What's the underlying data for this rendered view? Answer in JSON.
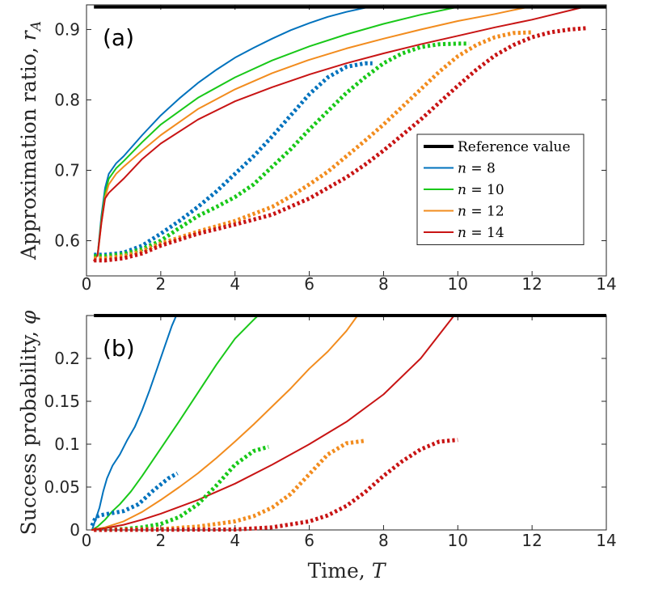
{
  "chart_data": [
    {
      "type": "line",
      "panel_label": "(a)",
      "ylabel": "Approximation ratio, r_A",
      "ylabel_text": "Approximation ratio, ",
      "ylabel_symbol": "r",
      "ylabel_sub": "A",
      "xlabel": "",
      "xlim": [
        0,
        14
      ],
      "ylim": [
        0.55,
        0.935
      ],
      "xticks": [
        "0",
        "2",
        "4",
        "6",
        "8",
        "10",
        "12",
        "14"
      ],
      "xtick_values": [
        0,
        2,
        4,
        6,
        8,
        10,
        12,
        14
      ],
      "yticks": [
        "0.6",
        "0.7",
        "0.8",
        "0.9"
      ],
      "ytick_values": [
        0.6,
        0.7,
        0.8,
        0.9
      ],
      "reference": {
        "name": "Reference value",
        "y": 0.932,
        "x": [
          0.2,
          14
        ],
        "color": "#000000"
      },
      "legend": {
        "position": "center-right",
        "entries": [
          {
            "label": "Reference value",
            "color": "#000000"
          },
          {
            "label_var": "n",
            "label_eq": " = 8",
            "label": "n = 8",
            "color": "#0072BD"
          },
          {
            "label_var": "n",
            "label_eq": " = 10",
            "label": "n = 10",
            "color": "#19C819"
          },
          {
            "label_var": "n",
            "label_eq": " = 12",
            "label": "n = 12",
            "color": "#F28C1E"
          },
          {
            "label_var": "n",
            "label_eq": " = 14",
            "label": "n = 14",
            "color": "#C81414"
          }
        ]
      },
      "series": [
        {
          "name": "n = 8",
          "style": "solid",
          "color": "#0072BD",
          "x": [
            0.3,
            0.4,
            0.5,
            0.6,
            0.8,
            1,
            1.5,
            2,
            2.5,
            3,
            3.5,
            4,
            4.5,
            5,
            5.5,
            6,
            6.5,
            7,
            7.6
          ],
          "y": [
            0.58,
            0.635,
            0.675,
            0.695,
            0.71,
            0.72,
            0.75,
            0.778,
            0.802,
            0.824,
            0.843,
            0.86,
            0.874,
            0.887,
            0.899,
            0.909,
            0.918,
            0.925,
            0.932
          ]
        },
        {
          "name": "n = 10",
          "style": "solid",
          "color": "#19C819",
          "x": [
            0.3,
            0.4,
            0.5,
            0.6,
            0.8,
            1,
            1.5,
            2,
            3,
            4,
            5,
            6,
            7,
            8,
            9,
            10
          ],
          "y": [
            0.58,
            0.63,
            0.668,
            0.688,
            0.703,
            0.713,
            0.74,
            0.765,
            0.803,
            0.832,
            0.856,
            0.876,
            0.893,
            0.908,
            0.921,
            0.932
          ]
        },
        {
          "name": "n = 12",
          "style": "solid",
          "color": "#F28C1E",
          "x": [
            0.3,
            0.4,
            0.5,
            0.6,
            0.8,
            1,
            1.5,
            2,
            3,
            4,
            5,
            6,
            7,
            8,
            9,
            10,
            11,
            11.9
          ],
          "y": [
            0.578,
            0.625,
            0.662,
            0.68,
            0.695,
            0.705,
            0.728,
            0.75,
            0.787,
            0.815,
            0.838,
            0.857,
            0.873,
            0.887,
            0.9,
            0.912,
            0.922,
            0.932
          ]
        },
        {
          "name": "n = 14",
          "style": "solid",
          "color": "#C81414",
          "x": [
            0.2,
            0.3,
            0.4,
            0.5,
            0.6,
            0.8,
            1,
            1.5,
            2,
            3,
            4,
            5,
            6,
            7,
            8,
            9,
            10,
            11,
            12,
            13.4
          ],
          "y": [
            0.572,
            0.58,
            0.625,
            0.66,
            0.668,
            0.678,
            0.688,
            0.716,
            0.738,
            0.772,
            0.798,
            0.818,
            0.836,
            0.852,
            0.866,
            0.879,
            0.891,
            0.903,
            0.914,
            0.932
          ]
        },
        {
          "name": "n = 8 (dotted)",
          "style": "dotted",
          "color": "#0072BD",
          "x": [
            0.2,
            0.5,
            1,
            1.5,
            2,
            2.5,
            3,
            3.5,
            4,
            4.5,
            5,
            5.5,
            6,
            6.5,
            7,
            7.5,
            7.7
          ],
          "y": [
            0.58,
            0.58,
            0.583,
            0.593,
            0.61,
            0.628,
            0.648,
            0.67,
            0.695,
            0.72,
            0.748,
            0.778,
            0.808,
            0.832,
            0.847,
            0.852,
            0.852
          ]
        },
        {
          "name": "n = 10 (dotted)",
          "style": "dotted",
          "color": "#19C819",
          "x": [
            0.2,
            0.5,
            1,
            1.5,
            2,
            2.5,
            3,
            3.5,
            4,
            4.5,
            5,
            5.5,
            6,
            6.5,
            7,
            7.5,
            8,
            8.5,
            9,
            9.5,
            10,
            10.3
          ],
          "y": [
            0.578,
            0.578,
            0.581,
            0.588,
            0.6,
            0.618,
            0.635,
            0.648,
            0.662,
            0.68,
            0.705,
            0.73,
            0.758,
            0.784,
            0.81,
            0.832,
            0.852,
            0.866,
            0.875,
            0.879,
            0.88,
            0.88
          ]
        },
        {
          "name": "n = 12 (dotted)",
          "style": "dotted",
          "color": "#F28C1E",
          "x": [
            0.2,
            0.5,
            1,
            1.5,
            2,
            3,
            4,
            5,
            5.5,
            6,
            6.5,
            7,
            7.5,
            8,
            8.5,
            9,
            9.5,
            10,
            10.5,
            11,
            11.5,
            12
          ],
          "y": [
            0.575,
            0.575,
            0.578,
            0.585,
            0.596,
            0.613,
            0.628,
            0.648,
            0.663,
            0.68,
            0.698,
            0.72,
            0.742,
            0.765,
            0.79,
            0.815,
            0.84,
            0.862,
            0.878,
            0.889,
            0.895,
            0.896
          ]
        },
        {
          "name": "n = 14 (dotted)",
          "style": "dotted",
          "color": "#C81414",
          "x": [
            0.2,
            0.5,
            1,
            1.5,
            2,
            3,
            4,
            5,
            6,
            7,
            7.5,
            8,
            8.5,
            9,
            9.5,
            10,
            10.5,
            11,
            11.5,
            12,
            12.5,
            13,
            13.5
          ],
          "y": [
            0.572,
            0.572,
            0.575,
            0.582,
            0.593,
            0.61,
            0.623,
            0.637,
            0.66,
            0.69,
            0.708,
            0.728,
            0.75,
            0.772,
            0.796,
            0.82,
            0.843,
            0.863,
            0.878,
            0.889,
            0.896,
            0.9,
            0.902
          ]
        }
      ]
    },
    {
      "type": "line",
      "panel_label": "(b)",
      "ylabel": "Success probability, φ",
      "ylabel_text": "Success probability, ",
      "ylabel_symbol": "φ",
      "xlabel": "Time, T",
      "xlabel_text": "Time, ",
      "xlabel_symbol": "T",
      "xlim": [
        0,
        14
      ],
      "ylim": [
        0,
        0.25
      ],
      "xticks": [
        "0",
        "2",
        "4",
        "6",
        "8",
        "10",
        "12",
        "14"
      ],
      "xtick_values": [
        0,
        2,
        4,
        6,
        8,
        10,
        12,
        14
      ],
      "yticks": [
        "0",
        "0.05",
        "0.1",
        "0.15",
        "0.2"
      ],
      "ytick_values": [
        0,
        0.05,
        0.1,
        0.15,
        0.2
      ],
      "reference": {
        "name": "Reference value",
        "y": 0.25,
        "x": [
          0.2,
          14
        ],
        "color": "#000000"
      },
      "series": [
        {
          "name": "n = 8",
          "style": "solid",
          "color": "#0072BD",
          "x": [
            0.15,
            0.25,
            0.35,
            0.45,
            0.55,
            0.7,
            0.9,
            1.1,
            1.3,
            1.5,
            1.7,
            1.9,
            2.1,
            2.3,
            2.42
          ],
          "y": [
            0,
            0.013,
            0.026,
            0.045,
            0.06,
            0.075,
            0.088,
            0.105,
            0.12,
            0.14,
            0.163,
            0.188,
            0.213,
            0.238,
            0.25
          ]
        },
        {
          "name": "n = 10",
          "style": "solid",
          "color": "#19C819",
          "x": [
            0.15,
            0.3,
            0.5,
            0.7,
            0.9,
            1.2,
            1.5,
            2,
            2.5,
            3,
            3.5,
            4,
            4.5,
            4.62
          ],
          "y": [
            0,
            0.004,
            0.012,
            0.022,
            0.03,
            0.045,
            0.063,
            0.095,
            0.127,
            0.16,
            0.193,
            0.223,
            0.245,
            0.25
          ]
        },
        {
          "name": "n = 12",
          "style": "solid",
          "color": "#F28C1E",
          "x": [
            0.15,
            0.5,
            1,
            1.5,
            2,
            2.5,
            3,
            3.5,
            4,
            4.5,
            5,
            5.5,
            6,
            6.5,
            7,
            7.3
          ],
          "y": [
            0,
            0.003,
            0.01,
            0.021,
            0.035,
            0.05,
            0.066,
            0.084,
            0.103,
            0.123,
            0.144,
            0.165,
            0.188,
            0.208,
            0.232,
            0.25
          ]
        },
        {
          "name": "n = 14",
          "style": "solid",
          "color": "#C81414",
          "x": [
            0.15,
            0.5,
            1,
            1.5,
            2,
            3,
            4,
            5,
            6,
            7,
            8,
            9,
            9.9
          ],
          "y": [
            0,
            0.002,
            0.006,
            0.012,
            0.019,
            0.035,
            0.054,
            0.076,
            0.1,
            0.126,
            0.158,
            0.2,
            0.25
          ]
        },
        {
          "name": "n = 8 (dotted)",
          "style": "dotted",
          "color": "#0072BD",
          "x": [
            0.15,
            0.25,
            0.35,
            0.6,
            1,
            1.4,
            1.8,
            2.2,
            2.45
          ],
          "y": [
            0.005,
            0.015,
            0.017,
            0.019,
            0.022,
            0.03,
            0.046,
            0.06,
            0.066
          ]
        },
        {
          "name": "n = 10 (dotted)",
          "style": "dotted",
          "color": "#19C819",
          "x": [
            0.2,
            1,
            1.5,
            2,
            2.5,
            3,
            3.5,
            4,
            4.5,
            4.9
          ],
          "y": [
            0,
            0.001,
            0.003,
            0.007,
            0.015,
            0.03,
            0.052,
            0.076,
            0.092,
            0.097
          ]
        },
        {
          "name": "n = 12 (dotted)",
          "style": "dotted",
          "color": "#F28C1E",
          "x": [
            0.2,
            2,
            3,
            4,
            4.5,
            5,
            5.5,
            6,
            6.5,
            7,
            7.5
          ],
          "y": [
            0,
            0.001,
            0.004,
            0.01,
            0.016,
            0.026,
            0.042,
            0.065,
            0.088,
            0.101,
            0.104
          ]
        },
        {
          "name": "n = 14 (dotted)",
          "style": "dotted",
          "color": "#C81414",
          "x": [
            0.2,
            4,
            5,
            6,
            6.5,
            7,
            7.5,
            8,
            8.5,
            9,
            9.5,
            10
          ],
          "y": [
            0,
            0.0005,
            0.003,
            0.01,
            0.017,
            0.028,
            0.044,
            0.063,
            0.08,
            0.094,
            0.103,
            0.105
          ]
        }
      ]
    }
  ]
}
